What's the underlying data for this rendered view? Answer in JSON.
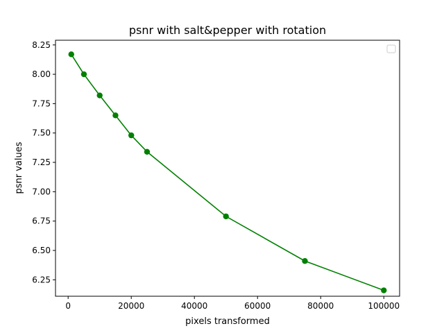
{
  "chart_data": {
    "type": "line",
    "title": "psnr with salt&pepper with rotation",
    "xlabel": "pixels transformed",
    "ylabel": "psnr values",
    "xlim": [
      -4000,
      105000
    ],
    "ylim": [
      6.11,
      8.29
    ],
    "xticks": [
      0,
      20000,
      40000,
      60000,
      80000,
      100000
    ],
    "xtick_labels": [
      "0",
      "20000",
      "40000",
      "60000",
      "80000",
      "100000"
    ],
    "yticks": [
      6.25,
      6.5,
      6.75,
      7.0,
      7.25,
      7.5,
      7.75,
      8.0,
      8.25
    ],
    "ytick_labels": [
      "6.25",
      "6.50",
      "6.75",
      "7.00",
      "7.25",
      "7.50",
      "7.75",
      "8.00",
      "8.25"
    ],
    "grid": false,
    "legend": "top-right (empty)",
    "series": [
      {
        "color": "#008000",
        "marker": "circle",
        "x": [
          1000,
          5000,
          10000,
          15000,
          20000,
          25000,
          50000,
          75000,
          100000
        ],
        "y": [
          8.17,
          8.0,
          7.82,
          7.65,
          7.48,
          7.34,
          6.79,
          6.41,
          6.16
        ]
      }
    ]
  }
}
